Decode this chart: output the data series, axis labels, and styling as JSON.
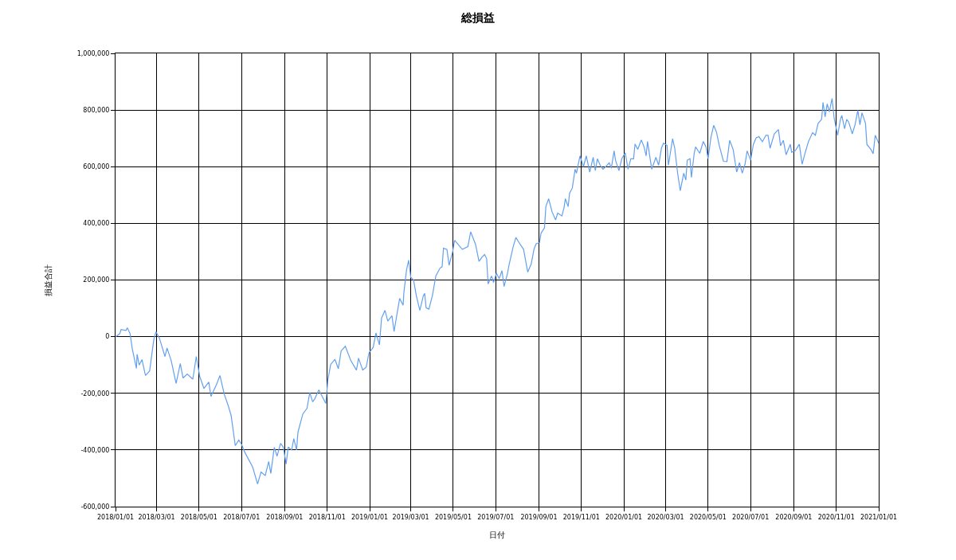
{
  "chart_data": {
    "type": "line",
    "title": "総損益",
    "xlabel": "日付",
    "ylabel": "損益合計",
    "x": [
      "2018-01-01",
      "2018-01-07",
      "2018-01-09",
      "2018-01-16",
      "2018-01-18",
      "2018-01-22",
      "2018-01-25",
      "2018-01-31",
      "2018-02-01",
      "2018-02-04",
      "2018-02-08",
      "2018-02-13",
      "2018-02-19",
      "2018-02-25",
      "2018-02-28",
      "2018-03-05",
      "2018-03-13",
      "2018-03-16",
      "2018-03-22",
      "2018-03-29",
      "2018-04-04",
      "2018-04-08",
      "2018-04-14",
      "2018-04-22",
      "2018-04-27",
      "2018-05-02",
      "2018-05-08",
      "2018-05-15",
      "2018-05-18",
      "2018-05-26",
      "2018-05-31",
      "2018-06-06",
      "2018-06-12",
      "2018-06-16",
      "2018-06-22",
      "2018-06-27",
      "2018-07-01",
      "2018-07-05",
      "2018-07-17",
      "2018-07-24",
      "2018-07-29",
      "2018-08-04",
      "2018-08-09",
      "2018-08-12",
      "2018-08-17",
      "2018-08-21",
      "2018-08-26",
      "2018-08-30",
      "2018-09-03",
      "2018-09-06",
      "2018-09-11",
      "2018-09-14",
      "2018-09-18",
      "2018-09-20",
      "2018-09-27",
      "2018-10-03",
      "2018-10-07",
      "2018-10-11",
      "2018-10-14",
      "2018-10-20",
      "2018-10-30",
      "2018-11-02",
      "2018-11-06",
      "2018-11-12",
      "2018-11-17",
      "2018-11-21",
      "2018-11-27",
      "2018-12-05",
      "2018-12-13",
      "2018-12-16",
      "2018-12-22",
      "2018-12-27",
      "2018-12-31",
      "2019-01-06",
      "2019-01-10",
      "2019-01-15",
      "2019-01-18",
      "2019-01-23",
      "2019-01-27",
      "2019-02-02",
      "2019-02-05",
      "2019-02-13",
      "2019-02-18",
      "2019-02-19",
      "2019-02-23",
      "2019-02-26",
      "2019-03-01",
      "2019-03-05",
      "2019-03-09",
      "2019-03-14",
      "2019-03-19",
      "2019-03-21",
      "2019-03-23",
      "2019-03-27",
      "2019-04-01",
      "2019-04-06",
      "2019-04-12",
      "2019-04-15",
      "2019-04-17",
      "2019-04-22",
      "2019-04-25",
      "2019-04-30",
      "2019-05-03",
      "2019-05-14",
      "2019-05-22",
      "2019-05-26",
      "2019-06-02",
      "2019-06-07",
      "2019-06-11",
      "2019-06-15",
      "2019-06-18",
      "2019-06-20",
      "2019-06-25",
      "2019-06-28",
      "2019-07-02",
      "2019-07-06",
      "2019-07-10",
      "2019-07-13",
      "2019-07-18",
      "2019-07-20",
      "2019-07-26",
      "2019-07-30",
      "2019-08-05",
      "2019-08-10",
      "2019-08-16",
      "2019-08-21",
      "2019-08-25",
      "2019-08-28",
      "2019-09-02",
      "2019-09-04",
      "2019-09-09",
      "2019-09-11",
      "2019-09-15",
      "2019-09-20",
      "2019-09-25",
      "2019-09-28",
      "2019-10-04",
      "2019-10-07",
      "2019-10-09",
      "2019-10-13",
      "2019-10-15",
      "2019-10-19",
      "2019-10-23",
      "2019-10-25",
      "2019-10-30",
      "2019-11-04",
      "2019-11-08",
      "2019-11-13",
      "2019-11-18",
      "2019-11-21",
      "2019-11-24",
      "2019-11-28",
      "2019-12-02",
      "2019-12-06",
      "2019-12-11",
      "2019-12-14",
      "2019-12-18",
      "2019-12-20",
      "2019-12-25",
      "2019-12-29",
      "2020-01-03",
      "2020-01-07",
      "2020-01-11",
      "2020-01-15",
      "2020-01-17",
      "2020-01-21",
      "2020-01-26",
      "2020-01-30",
      "2020-02-02",
      "2020-02-04",
      "2020-02-10",
      "2020-02-16",
      "2020-02-20",
      "2020-02-24",
      "2020-02-27",
      "2020-03-03",
      "2020-03-05",
      "2020-03-08",
      "2020-03-11",
      "2020-03-14",
      "2020-03-18",
      "2020-03-22",
      "2020-03-27",
      "2020-03-30",
      "2020-04-01",
      "2020-04-05",
      "2020-04-07",
      "2020-04-11",
      "2020-04-13",
      "2020-04-19",
      "2020-04-24",
      "2020-04-28",
      "2020-05-01",
      "2020-05-05",
      "2020-05-09",
      "2020-05-13",
      "2020-05-17",
      "2020-05-23",
      "2020-05-28",
      "2020-06-01",
      "2020-06-06",
      "2020-06-11",
      "2020-06-15",
      "2020-06-19",
      "2020-06-23",
      "2020-06-26",
      "2020-07-01",
      "2020-07-05",
      "2020-07-09",
      "2020-07-13",
      "2020-07-18",
      "2020-07-23",
      "2020-07-26",
      "2020-07-29",
      "2020-08-04",
      "2020-08-10",
      "2020-08-13",
      "2020-08-17",
      "2020-08-21",
      "2020-08-27",
      "2020-08-29",
      "2020-09-03",
      "2020-09-09",
      "2020-09-13",
      "2020-09-17",
      "2020-09-22",
      "2020-09-28",
      "2020-10-02",
      "2020-10-06",
      "2020-10-11",
      "2020-10-13",
      "2020-10-16",
      "2020-10-19",
      "2020-10-22",
      "2020-10-26",
      "2020-10-29",
      "2020-11-03",
      "2020-11-07",
      "2020-11-09",
      "2020-11-13",
      "2020-11-16",
      "2020-11-19",
      "2020-11-24",
      "2020-11-28",
      "2020-12-02",
      "2020-12-05",
      "2020-12-08",
      "2020-12-13",
      "2020-12-15",
      "2020-12-21",
      "2020-12-24",
      "2020-12-27",
      "2021-01-01"
    ],
    "series": [
      {
        "color": "#64a0f0",
        "values": [
          0,
          10000,
          25000,
          22000,
          31000,
          10000,
          -42000,
          -112000,
          -62000,
          -100000,
          -81000,
          -137000,
          -121000,
          -10000,
          17000,
          -5000,
          -70000,
          -40000,
          -85000,
          -165000,
          -95000,
          -146000,
          -132000,
          -150000,
          -70000,
          -141000,
          -183000,
          -160000,
          -211000,
          -169000,
          -137000,
          -202000,
          -245000,
          -278000,
          -385000,
          -365000,
          -380000,
          -405000,
          -461000,
          -520000,
          -478000,
          -490000,
          -441000,
          -483000,
          -391000,
          -422000,
          -377000,
          -390000,
          -450000,
          -390000,
          -400000,
          -360000,
          -400000,
          -337000,
          -273000,
          -253000,
          -197000,
          -230000,
          -220000,
          -188000,
          -236000,
          -152000,
          -98000,
          -80000,
          -113000,
          -50000,
          -34000,
          -85000,
          -118000,
          -76000,
          -118000,
          -108000,
          -57000,
          -38000,
          13000,
          -29000,
          65000,
          93000,
          55000,
          74000,
          18000,
          135000,
          111000,
          153000,
          237000,
          270000,
          209000,
          200000,
          144000,
          93000,
          144000,
          153000,
          102000,
          97000,
          144000,
          214000,
          242000,
          247000,
          312000,
          308000,
          252000,
          298000,
          340000,
          308000,
          318000,
          370000,
          326000,
          266000,
          280000,
          290000,
          275000,
          186000,
          214000,
          191000,
          224000,
          205000,
          233000,
          177000,
          224000,
          252000,
          317000,
          350000,
          326000,
          308000,
          228000,
          257000,
          309000,
          328000,
          332000,
          365000,
          384000,
          459000,
          487000,
          440000,
          412000,
          436000,
          426000,
          454000,
          487000,
          459000,
          506000,
          525000,
          591000,
          577000,
          638000,
          600000,
          638000,
          581000,
          633000,
          586000,
          628000,
          605000,
          591000,
          600000,
          614000,
          595000,
          656000,
          623000,
          586000,
          628000,
          649000,
          591000,
          628000,
          628000,
          680000,
          661000,
          694000,
          670000,
          638000,
          689000,
          591000,
          633000,
          605000,
          666000,
          683000,
          675000,
          605000,
          652000,
          699000,
          666000,
          581000,
          515000,
          577000,
          553000,
          623000,
          628000,
          562000,
          647000,
          670000,
          647000,
          689000,
          670000,
          628000,
          703000,
          746000,
          722000,
          675000,
          619000,
          618000,
          693000,
          660000,
          581000,
          614000,
          577000,
          609000,
          656000,
          623000,
          679000,
          702000,
          706000,
          688000,
          711000,
          711000,
          665000,
          716000,
          731000,
          674000,
          693000,
          642000,
          679000,
          651000,
          656000,
          679000,
          609000,
          646000,
          688000,
          720000,
          711000,
          753000,
          767000,
          827000,
          776000,
          822000,
          794000,
          841000,
          771000,
          711000,
          767000,
          781000,
          734000,
          767000,
          757000,
          716000,
          748000,
          799000,
          748000,
          790000,
          753000,
          679000,
          660000,
          646000,
          711000,
          683000
        ]
      }
    ],
    "xlim": [
      "2018-01-01",
      "2021-01-01"
    ],
    "xticks": [
      {
        "value": "2018-01-01",
        "label": "2018/01/01"
      },
      {
        "value": "2018-03-01",
        "label": "2018/03/01"
      },
      {
        "value": "2018-05-01",
        "label": "2018/05/01"
      },
      {
        "value": "2018-07-01",
        "label": "2018/07/01"
      },
      {
        "value": "2018-09-01",
        "label": "2018/09/01"
      },
      {
        "value": "2018-11-01",
        "label": "2018/11/01"
      },
      {
        "value": "2019-01-01",
        "label": "2019/01/01"
      },
      {
        "value": "2019-03-01",
        "label": "2019/03/01"
      },
      {
        "value": "2019-05-01",
        "label": "2019/05/01"
      },
      {
        "value": "2019-07-01",
        "label": "2019/07/01"
      },
      {
        "value": "2019-09-01",
        "label": "2019/09/01"
      },
      {
        "value": "2019-11-01",
        "label": "2019/11/01"
      },
      {
        "value": "2020-01-01",
        "label": "2020/01/01"
      },
      {
        "value": "2020-03-01",
        "label": "2020/03/01"
      },
      {
        "value": "2020-05-01",
        "label": "2020/05/01"
      },
      {
        "value": "2020-07-01",
        "label": "2020/07/01"
      },
      {
        "value": "2020-09-01",
        "label": "2020/09/01"
      },
      {
        "value": "2020-11-01",
        "label": "2020/11/01"
      },
      {
        "value": "2021-01-01",
        "label": "2021/01/01"
      }
    ],
    "ylim": [
      -600000,
      1000000
    ],
    "yticks": [
      {
        "value": -600000,
        "label": "-600,000"
      },
      {
        "value": -400000,
        "label": "-400,000"
      },
      {
        "value": -200000,
        "label": "-200,000"
      },
      0,
      {
        "value": 200000,
        "label": "200,000"
      },
      {
        "value": 400000,
        "label": "400,000"
      },
      {
        "value": 600000,
        "label": "600,000"
      },
      {
        "value": 800000,
        "label": "800,000"
      },
      {
        "value": 1000000,
        "label": "1,000,000"
      }
    ],
    "grid": true,
    "marker": "none",
    "line_style": "solid"
  }
}
